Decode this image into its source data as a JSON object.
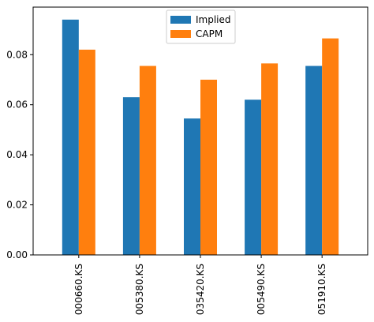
{
  "chart_data": {
    "type": "bar",
    "categories": [
      "000660.KS",
      "005380.KS",
      "035420.KS",
      "005490.KS",
      "051910.KS"
    ],
    "series": [
      {
        "name": "Implied",
        "values": [
          0.094,
          0.063,
          0.0545,
          0.062,
          0.0755
        ],
        "color": "#1f77b4"
      },
      {
        "name": "CAPM",
        "values": [
          0.082,
          0.0755,
          0.07,
          0.0765,
          0.0865
        ],
        "color": "#ff7f0e"
      }
    ],
    "yticks": [
      "0.00",
      "0.02",
      "0.04",
      "0.06",
      "0.08"
    ],
    "ylim": [
      0,
      0.099
    ],
    "legend_position": "top-center",
    "grid": false,
    "title": "",
    "xlabel": "",
    "ylabel": ""
  }
}
